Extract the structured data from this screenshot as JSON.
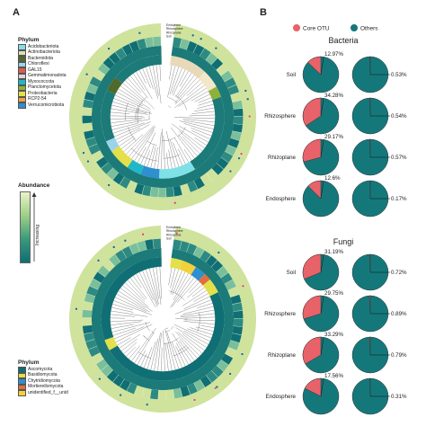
{
  "panels": {
    "a": "A",
    "b": "B"
  },
  "phylum_legend_top": {
    "title": "Phylum",
    "items": [
      {
        "label": "Acidobacteriota",
        "color": "#7fe0e6"
      },
      {
        "label": "Actinobacteriota",
        "color": "#e8d9b8"
      },
      {
        "label": "Bacteroidota",
        "color": "#4f6a2a"
      },
      {
        "label": "Chloroflexi",
        "color": "#9bd3ea"
      },
      {
        "label": "GAL15",
        "color": "#e05b4a"
      },
      {
        "label": "Gemmatimonadota",
        "color": "#d9d9d9"
      },
      {
        "label": "Myxococcota",
        "color": "#1fb8c7"
      },
      {
        "label": "Planctomycetota",
        "color": "#8fb13a"
      },
      {
        "label": "Proteobacteria",
        "color": "#e3e04a"
      },
      {
        "label": "RCP2-54",
        "color": "#f2a23a"
      },
      {
        "label": "Verrucomicrobiota",
        "color": "#2f8fcf"
      }
    ]
  },
  "abundance_legend": {
    "title": "Abundance",
    "arrow_label": "Increasing",
    "colors": [
      "#e9f3c9",
      "#0d6f73"
    ]
  },
  "phylum_legend_bottom": {
    "title": "Phylum",
    "items": [
      {
        "label": "Ascomycota",
        "color": "#0f6f74"
      },
      {
        "label": "Basidiomycota",
        "color": "#e3e04a"
      },
      {
        "label": "Chytridiomycota",
        "color": "#2f8fcf"
      },
      {
        "label": "Mortierellomycota",
        "color": "#e26f3a"
      },
      {
        "label": "unidentified_f__unid",
        "color": "#f2d13a"
      }
    ]
  },
  "tree_top_labels": [
    "Endophere",
    "Rhizosphere",
    "Rhizoplane",
    "Soil"
  ],
  "tree_bottom_labels": [
    "Endophere",
    "Rhizosphere",
    "Rhizoplane",
    "Soil"
  ],
  "pie_legend": {
    "core": "Core OTU",
    "others": "Others",
    "core_color": "#e8626a",
    "others_color": "#14787b"
  },
  "chart_data": [
    {
      "type": "pie",
      "title": "Bacteria",
      "series_names": [
        "Core OTU",
        "Others"
      ],
      "rows": [
        {
          "label": "Soil",
          "core_otu_pct": 12.97,
          "core_abund_pct": 0.53,
          "core_otu_text": "12.97%",
          "core_abund_text": "0.53%"
        },
        {
          "label": "Rhizosphere",
          "core_otu_pct": 34.28,
          "core_abund_pct": 0.54,
          "core_otu_text": "34.28%",
          "core_abund_text": "0.54%"
        },
        {
          "label": "Rhizoplane",
          "core_otu_pct": 29.17,
          "core_abund_pct": 0.57,
          "core_otu_text": "29.17%",
          "core_abund_text": "0.57%"
        },
        {
          "label": "Endosphere",
          "core_otu_pct": 12.6,
          "core_abund_pct": 0.17,
          "core_otu_text": "12.6%",
          "core_abund_text": "0.17%"
        }
      ]
    },
    {
      "type": "pie",
      "title": "Fungi",
      "series_names": [
        "Core OTU",
        "Others"
      ],
      "rows": [
        {
          "label": "Soil",
          "core_otu_pct": 31.19,
          "core_abund_pct": 0.72,
          "core_otu_text": "31.19%",
          "core_abund_text": "0.72%"
        },
        {
          "label": "Rhizosphere",
          "core_otu_pct": 29.75,
          "core_abund_pct": 0.89,
          "core_otu_text": "29.75%",
          "core_abund_text": "0.89%"
        },
        {
          "label": "Rhizoplane",
          "core_otu_pct": 33.29,
          "core_abund_pct": 0.79,
          "core_otu_text": "33.29%",
          "core_abund_text": "0.79%"
        },
        {
          "label": "Endosphere",
          "core_otu_pct": 17.56,
          "core_abund_pct": 0.31,
          "core_otu_text": "17.56%",
          "core_abund_text": "0.31%"
        }
      ]
    }
  ]
}
